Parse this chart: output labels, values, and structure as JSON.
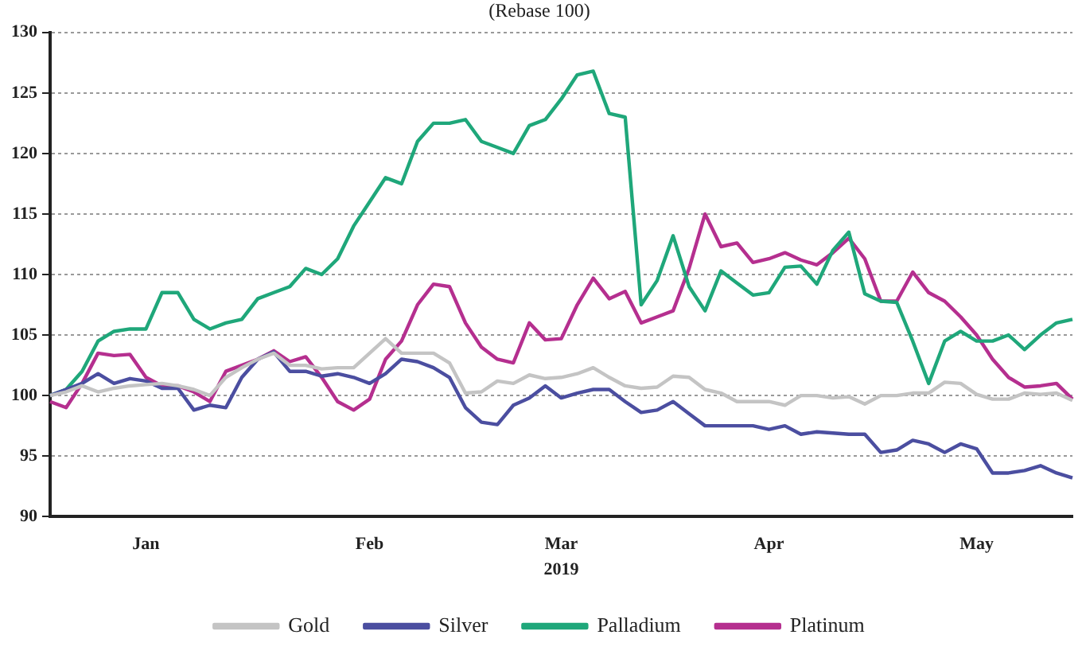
{
  "chart_data": {
    "type": "line",
    "subtitle": "(Rebase 100)",
    "xlabel": "2019",
    "categories": [
      null,
      null,
      null,
      null,
      null,
      null,
      "Jan",
      null,
      null,
      null,
      null,
      null,
      null,
      null,
      null,
      null,
      null,
      null,
      null,
      null,
      "Feb",
      null,
      null,
      null,
      null,
      null,
      null,
      null,
      null,
      null,
      null,
      null,
      "Mar",
      null,
      null,
      null,
      null,
      null,
      null,
      null,
      null,
      null,
      null,
      null,
      null,
      "Apr",
      null,
      null,
      null,
      null,
      null,
      null,
      null,
      null,
      null,
      null,
      null,
      null,
      "May",
      null,
      null,
      null,
      null,
      null,
      null
    ],
    "series": [
      {
        "name": "Gold",
        "color": "#c4c4c4",
        "values": [
          100,
          100.3,
          100.8,
          100.3,
          100.6,
          100.8,
          100.9,
          101,
          100.8,
          100.5,
          100,
          101.5,
          102.3,
          103,
          103.5,
          102.5,
          102.5,
          102.2,
          102.3,
          102.3,
          103.5,
          104.7,
          103.5,
          103.5,
          103.5,
          102.7,
          100.2,
          100.3,
          101.2,
          101,
          101.7,
          101.4,
          101.5,
          101.8,
          102.3,
          101.5,
          100.8,
          100.6,
          100.7,
          101.6,
          101.5,
          100.5,
          100.2,
          99.5,
          99.5,
          99.5,
          99.2,
          100,
          100,
          99.8,
          99.9,
          99.3,
          100,
          100,
          100.2,
          100.2,
          101.1,
          101,
          100.1,
          99.7,
          99.7,
          100.2,
          100.1,
          100.2,
          99.6
        ]
      },
      {
        "name": "Silver",
        "color": "#4b4ea0",
        "values": [
          100,
          100.5,
          101,
          101.8,
          101,
          101.4,
          101.2,
          100.6,
          100.6,
          98.8,
          99.2,
          99,
          101.5,
          103,
          103.6,
          102,
          102,
          101.6,
          101.8,
          101.5,
          101,
          101.8,
          103,
          102.8,
          102.3,
          101.5,
          99,
          97.8,
          97.6,
          99.2,
          99.8,
          100.8,
          99.8,
          100.2,
          100.5,
          100.5,
          99.5,
          98.6,
          98.8,
          99.5,
          98.5,
          97.5,
          97.5,
          97.5,
          97.5,
          97.2,
          97.5,
          96.8,
          97,
          96.9,
          96.8,
          96.8,
          95.3,
          95.5,
          96.3,
          96,
          95.3,
          96,
          95.6,
          93.6,
          93.6,
          93.8,
          94.2,
          93.6,
          93.2
        ]
      },
      {
        "name": "Palladium",
        "color": "#1fa77a",
        "values": [
          100,
          100.5,
          102,
          104.5,
          105.3,
          105.5,
          105.5,
          108.5,
          108.5,
          106.3,
          105.5,
          106,
          106.3,
          108,
          108.5,
          109,
          110.5,
          110,
          111.3,
          114,
          116,
          118,
          117.5,
          121,
          122.5,
          122.5,
          122.8,
          121,
          120.5,
          120,
          122.3,
          122.8,
          124.5,
          126.5,
          126.8,
          123.3,
          123,
          107.5,
          109.5,
          113.2,
          109,
          107,
          110.3,
          109.3,
          108.3,
          108.5,
          110.6,
          110.7,
          109.2,
          112,
          113.5,
          108.4,
          107.8,
          107.7,
          104.5,
          101,
          104.5,
          105.3,
          104.5,
          104.5,
          105,
          103.8,
          105,
          106,
          106.3
        ]
      },
      {
        "name": "Platinum",
        "color": "#b52f8f",
        "values": [
          99.5,
          99,
          101,
          103.5,
          103.3,
          103.4,
          101.5,
          100.8,
          100.8,
          100.3,
          99.5,
          102,
          102.5,
          103,
          103.7,
          102.8,
          103.2,
          101.5,
          99.5,
          98.8,
          99.7,
          103,
          104.5,
          107.5,
          109.2,
          109,
          106,
          104,
          103,
          102.7,
          106,
          104.6,
          104.7,
          107.5,
          109.7,
          108,
          108.6,
          106,
          106.5,
          107,
          110.5,
          115,
          112.3,
          112.6,
          111,
          111.3,
          111.8,
          111.2,
          110.8,
          111.8,
          113,
          111.3,
          107.8,
          107.8,
          110.2,
          108.5,
          107.8,
          106.5,
          105,
          103,
          101.5,
          100.7,
          100.8,
          101,
          99.7
        ]
      }
    ],
    "ylim": [
      90,
      130
    ],
    "yticks": [
      90,
      95,
      100,
      105,
      110,
      115,
      120,
      125,
      130
    ],
    "grid": "y",
    "legend": "bottom",
    "marker": "none",
    "line_style": "solid"
  }
}
